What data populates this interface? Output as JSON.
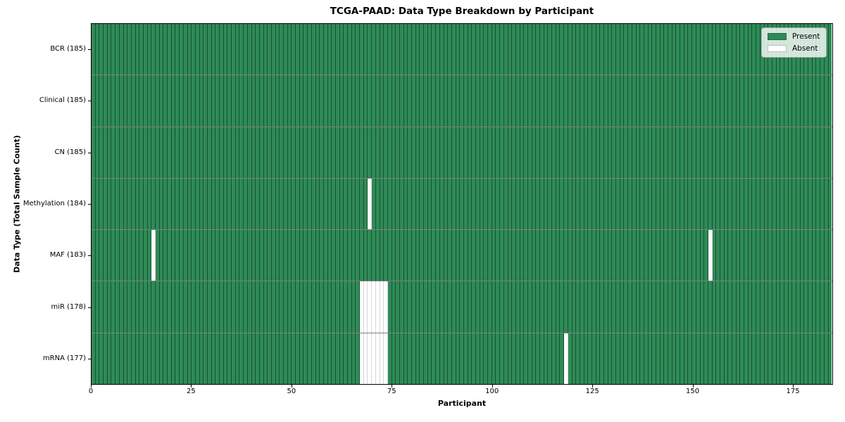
{
  "chart_data": {
    "type": "heatmap",
    "title": "TCGA-PAAD: Data Type Breakdown by Participant",
    "xlabel": "Participant",
    "ylabel": "Data Type (Total Sample Count)",
    "x_range": [
      0,
      185
    ],
    "n_participants": 185,
    "x_ticks": [
      0,
      25,
      50,
      75,
      100,
      125,
      150,
      175
    ],
    "grid": false,
    "colors": {
      "present": "#2e8b57",
      "absent": "#ffffff"
    },
    "rows": [
      {
        "label": "BCR (185)",
        "data_type": "BCR",
        "total": 185,
        "absent_participants": []
      },
      {
        "label": "Clinical (185)",
        "data_type": "Clinical",
        "total": 185,
        "absent_participants": []
      },
      {
        "label": "CN (185)",
        "data_type": "CN",
        "total": 185,
        "absent_participants": []
      },
      {
        "label": "Methylation (184)",
        "data_type": "Methylation",
        "total": 184,
        "absent_participants": [
          69
        ]
      },
      {
        "label": "MAF (183)",
        "data_type": "MAF",
        "total": 183,
        "absent_participants": [
          15,
          154
        ]
      },
      {
        "label": "miR (178)",
        "data_type": "miR",
        "total": 178,
        "absent_participants": [
          67,
          68,
          69,
          70,
          71,
          72,
          73
        ]
      },
      {
        "label": "mRNA (177)",
        "data_type": "mRNA",
        "total": 177,
        "absent_participants": [
          67,
          68,
          69,
          70,
          71,
          72,
          73,
          118
        ]
      }
    ],
    "legend": {
      "position": "upper right",
      "entries": [
        {
          "label": "Present",
          "color": "#2e8b57"
        },
        {
          "label": "Absent",
          "color": "#ffffff"
        }
      ]
    }
  }
}
